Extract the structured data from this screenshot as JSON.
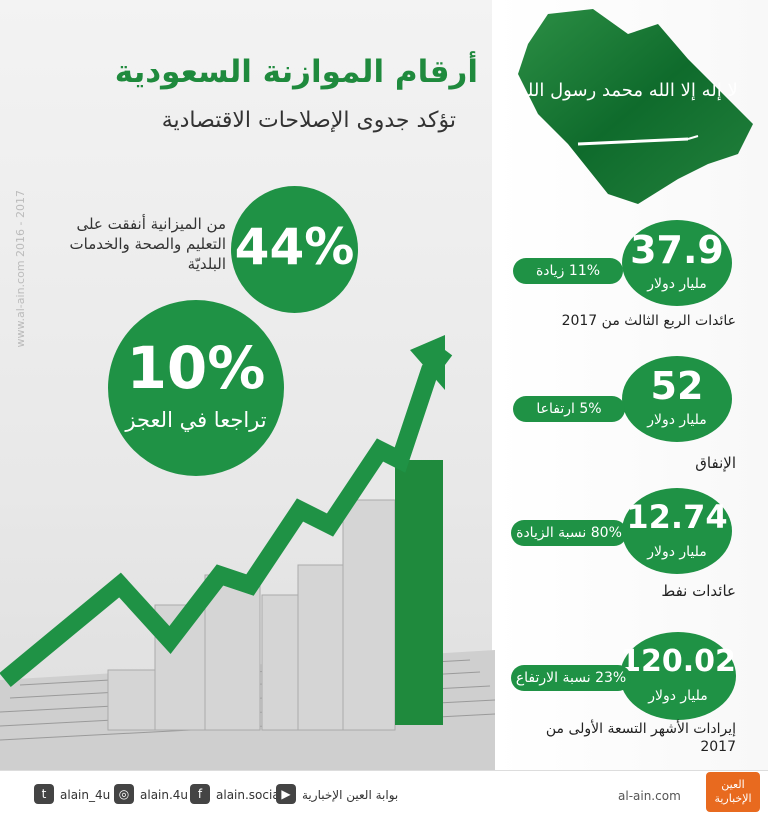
{
  "header": {
    "title": "أرقام الموازنة السعودية",
    "subtitle": "تؤكد جدوى الإصلاحات الاقتصادية"
  },
  "left": {
    "stat44": {
      "value": "44%",
      "note": "من الميزانية أنفقت على التعليم والصحة والخدمات البلديّة"
    },
    "stat10": {
      "value": "10%",
      "caption": "تراجعا في العجز"
    }
  },
  "right": {
    "stats": [
      {
        "value": "37.9",
        "unit": "مليار دولار",
        "pill": "11% زيادة",
        "label": "عائدات الربع الثالث من 2017"
      },
      {
        "value": "52",
        "unit": "مليار دولار",
        "pill": "5% ارتفاعا",
        "label": "الإنفاق"
      },
      {
        "value": "12.74",
        "unit": "مليار دولار",
        "pill": "80% نسبة الزيادة",
        "label": "عائدات نفط"
      },
      {
        "value": "120.02",
        "unit": "مليار دولار",
        "pill": "23% نسبة الارتفاع",
        "label": "إيرادات الأشهر التسعة الأولى من 2017"
      }
    ]
  },
  "flag": {
    "shahada": "لا إله إلا الله محمد رسول الله"
  },
  "watermark": {
    "site": "www.al-ain.com",
    "years": "2016 - 2017"
  },
  "footer": {
    "twitter": "alain_4u",
    "instagram": "alain.4u",
    "facebook": "alain.social",
    "youtube": "بوابة العين الإخبارية",
    "site": "al-ain.com",
    "logo_line1": "العين",
    "logo_line2": "الإخبارية"
  },
  "colors": {
    "green": "#1f9245",
    "dark_green": "#1f8a3d",
    "gray_bar": "#d9d9d9",
    "orange": "#e86a1f"
  },
  "icons": [
    "twitter-icon",
    "instagram-icon",
    "facebook-icon",
    "youtube-icon"
  ]
}
